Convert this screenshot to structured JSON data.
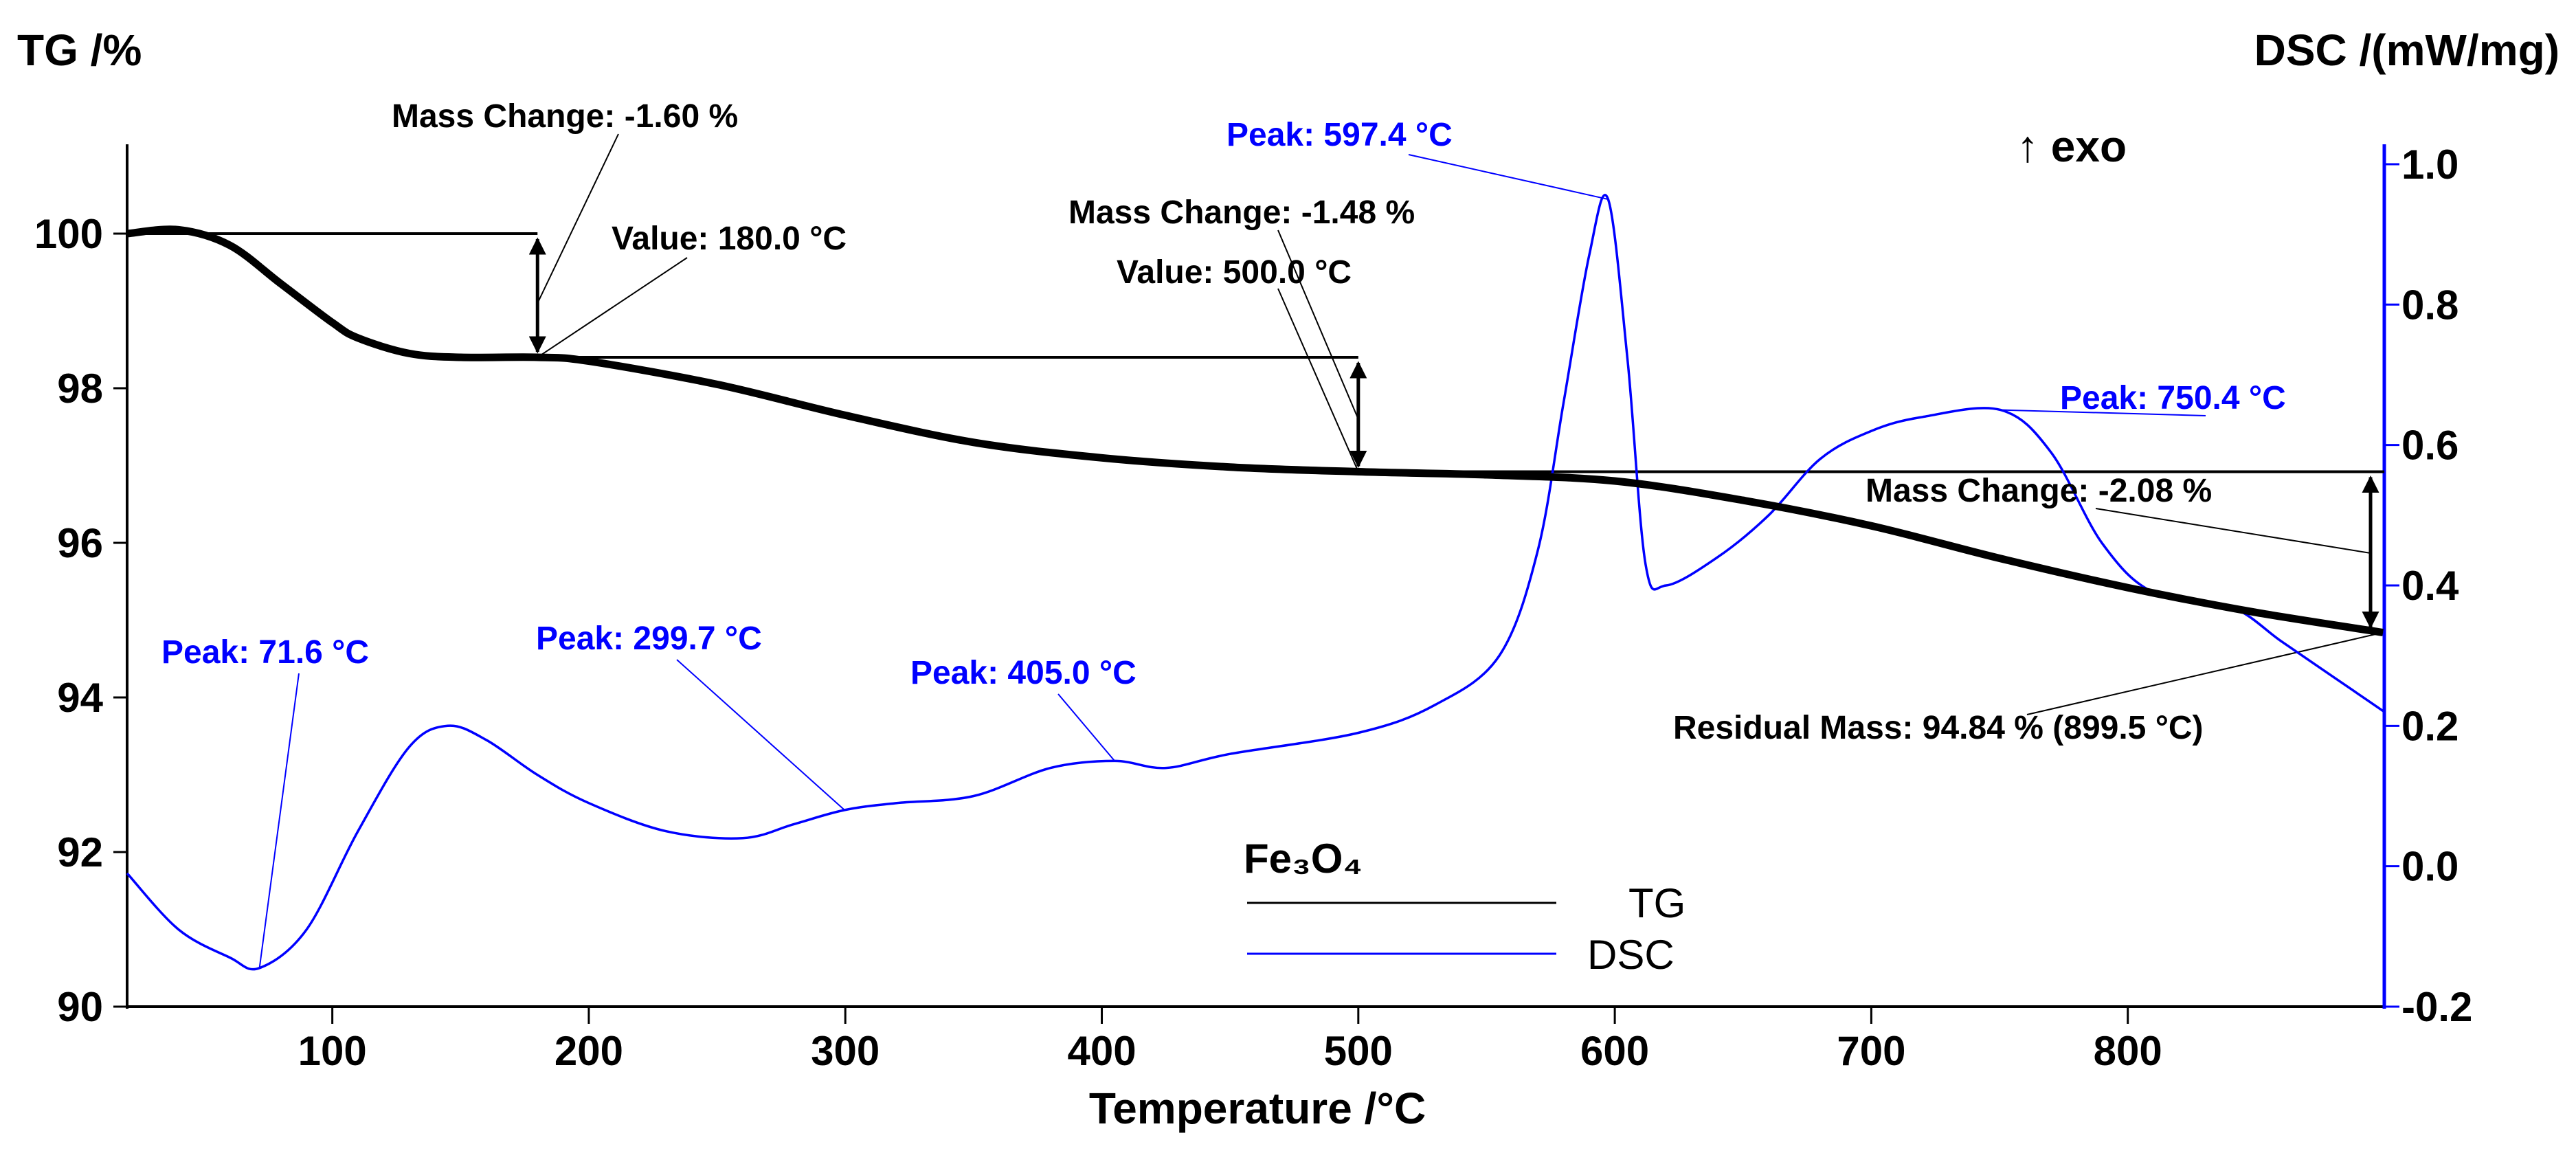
{
  "chart_data": {
    "type": "line",
    "title": "",
    "xlabel": "Temperature /°C",
    "ylabel_left": "TG /%",
    "ylabel_right": "DSC /(mW/mg)",
    "exo_label": "↑ exo",
    "xlim": [
      20,
      900
    ],
    "ylim_left": [
      90,
      101
    ],
    "ylim_right": [
      -0.2,
      1.0
    ],
    "x_ticks": [
      100,
      200,
      300,
      400,
      500,
      600,
      700,
      800
    ],
    "y_left_ticks": [
      90,
      92,
      94,
      96,
      98,
      100
    ],
    "y_right_ticks": [
      -0.2,
      0.0,
      0.2,
      0.4,
      0.6,
      0.8,
      1.0
    ],
    "y_right_tick_labels": [
      "-0.2",
      "0.0",
      "0.2",
      "0.4",
      "0.6",
      "0.8",
      "1.0"
    ],
    "colors": {
      "tg": "#000000",
      "dsc": "#0000ff"
    },
    "legend": {
      "sample": "Fe₃O₄",
      "entries": [
        "TG",
        "DSC"
      ]
    },
    "series": [
      {
        "name": "TG",
        "axis": "left",
        "x": [
          20,
          40,
          60,
          80,
          100,
          110,
          130,
          150,
          180,
          200,
          250,
          300,
          350,
          400,
          450,
          500,
          550,
          600,
          650,
          700,
          750,
          800,
          850,
          899.5
        ],
        "y": [
          100.0,
          100.05,
          99.85,
          99.35,
          98.85,
          98.65,
          98.45,
          98.4,
          98.4,
          98.35,
          98.05,
          97.65,
          97.3,
          97.1,
          96.98,
          96.92,
          96.88,
          96.8,
          96.55,
          96.22,
          95.8,
          95.42,
          95.1,
          94.84
        ]
      },
      {
        "name": "DSC",
        "axis": "right",
        "x": [
          20,
          40,
          60,
          71.6,
          90,
          110,
          130,
          145,
          160,
          180,
          200,
          230,
          260,
          280,
          299.7,
          320,
          350,
          380,
          405,
          425,
          450,
          500,
          530,
          555,
          570,
          580,
          590,
          597.4,
          605,
          612,
          620,
          640,
          660,
          680,
          700,
          720,
          750.4,
          770,
          790,
          810,
          840,
          860,
          880,
          900
        ],
        "y": [
          -0.01,
          -0.09,
          -0.13,
          -0.145,
          -0.09,
          0.05,
          0.17,
          0.2,
          0.18,
          0.13,
          0.09,
          0.05,
          0.04,
          0.06,
          0.08,
          0.09,
          0.1,
          0.14,
          0.15,
          0.14,
          0.16,
          0.19,
          0.23,
          0.3,
          0.45,
          0.66,
          0.87,
          0.95,
          0.72,
          0.43,
          0.4,
          0.44,
          0.5,
          0.58,
          0.62,
          0.64,
          0.65,
          0.59,
          0.46,
          0.39,
          0.37,
          0.32,
          0.27,
          0.22
        ]
      }
    ],
    "annotations": [
      {
        "text": "Mass Change: -1.60 %",
        "series": "TG"
      },
      {
        "text": "Value: 180.0 °C",
        "series": "TG"
      },
      {
        "text": "Mass Change: -1.48 %",
        "series": "TG"
      },
      {
        "text": "Value: 500.0 °C",
        "series": "TG"
      },
      {
        "text": "Mass Change: -2.08 %",
        "series": "TG"
      },
      {
        "text": "Residual Mass: 94.84 % (899.5 °C)",
        "series": "TG"
      },
      {
        "text": "Peak: 71.6 °C",
        "series": "DSC"
      },
      {
        "text": "Peak: 299.7 °C",
        "series": "DSC"
      },
      {
        "text": "Peak: 405.0 °C",
        "series": "DSC"
      },
      {
        "text": "Peak: 597.4 °C",
        "series": "DSC"
      },
      {
        "text": "Peak: 750.4 °C",
        "series": "DSC"
      }
    ]
  }
}
